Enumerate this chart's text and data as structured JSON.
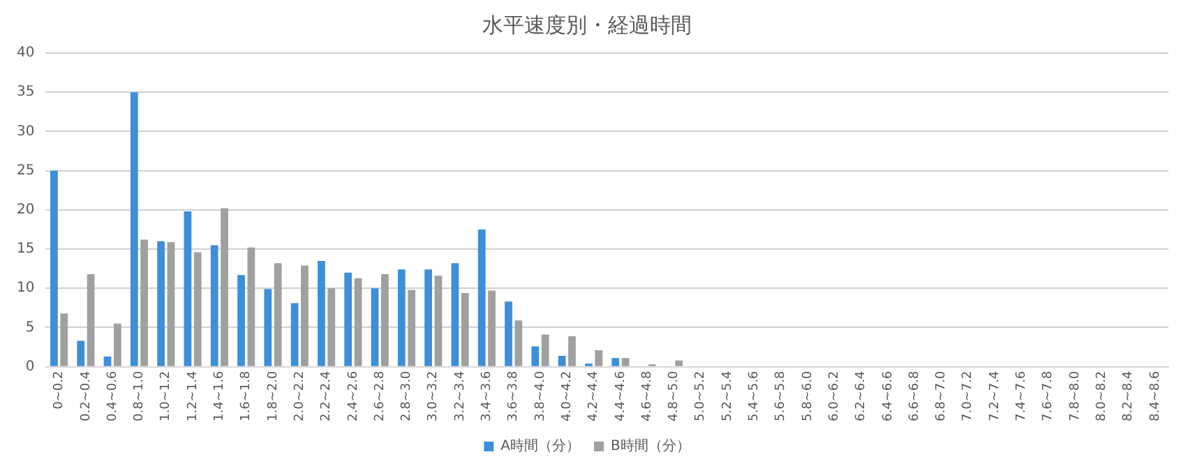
{
  "chart_data": {
    "type": "bar",
    "title": "水平速度別・経過時間",
    "categories": [
      "0~0.2",
      "0.2~0.4",
      "0.4~0.6",
      "0.8~1.0",
      "1.0~1.2",
      "1.2~1.4",
      "1.4~1.6",
      "1.6~1.8",
      "1.8~2.0",
      "2.0~2.2",
      "2.2~2.4",
      "2.4~2.6",
      "2.6~2.8",
      "2.8~3.0",
      "3.0~3.2",
      "3.2~3.4",
      "3.4~3.6",
      "3.6~3.8",
      "3.8~4.0",
      "4.0~4.2",
      "4.2~4.4",
      "4.4~4.6",
      "4.6~4.8",
      "4.8~5.0",
      "5.0~5.2",
      "5.2~5.4",
      "5.4~5.6",
      "5.6~5.8",
      "5.8~6.0",
      "6.0~6.2",
      "6.2~6.4",
      "6.4~6.6",
      "6.6~6.8",
      "6.8~7.0",
      "7.0~7.2",
      "7.2~7.4",
      "7.4~7.6",
      "7.6~7.8",
      "7.8~8.0",
      "8.0~8.2",
      "8.2~8.4",
      "8.4~8.6"
    ],
    "series": [
      {
        "name": "A時間（分）",
        "color": "#3d8fd9",
        "values": [
          25,
          3.3,
          1.3,
          35,
          16,
          19.8,
          15.5,
          11.7,
          9.9,
          8.1,
          13.5,
          12,
          10,
          12.4,
          12.4,
          13.2,
          17.5,
          8.3,
          2.6,
          1.4,
          0.4,
          1.1,
          0,
          0,
          0,
          0,
          0,
          0,
          0,
          0,
          0,
          0,
          0,
          0,
          0,
          0,
          0,
          0,
          0,
          0,
          0,
          0
        ]
      },
      {
        "name": "B時間（分）",
        "color": "#a0a0a0",
        "values": [
          6.8,
          11.8,
          5.5,
          16.2,
          15.9,
          14.6,
          20.2,
          15.2,
          13.2,
          12.9,
          10,
          11.3,
          11.8,
          9.8,
          11.6,
          9.4,
          9.7,
          5.9,
          4.1,
          3.9,
          2.1,
          1.1,
          0.3,
          0.8,
          0,
          0,
          0,
          0,
          0,
          0,
          0,
          0,
          0,
          0,
          0,
          0,
          0,
          0,
          0,
          0,
          0,
          0
        ]
      }
    ],
    "ylim": [
      0,
      40
    ],
    "yticks": [
      0,
      5,
      10,
      15,
      20,
      25,
      30,
      35,
      40
    ],
    "grid": "y",
    "legend": "bottom"
  }
}
